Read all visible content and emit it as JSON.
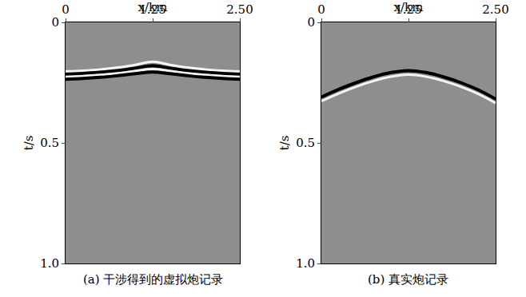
{
  "chart_data": [
    {
      "type": "line",
      "title": "(a) 干涉得到的虚拟炮记录",
      "x_label": "x/km",
      "y_label": "t/s",
      "xlim": [
        0,
        2.5
      ],
      "xticks": [
        0,
        1.25,
        {
          "value": 2.5,
          "label": "2.50"
        }
      ],
      "ylim": [
        1,
        0
      ],
      "yticks": [
        0,
        0.5,
        {
          "value": 1,
          "label": "1.0"
        }
      ],
      "x": [
        0,
        0.25,
        0.5,
        0.75,
        1.0,
        1.25,
        1.5,
        1.75,
        2.0,
        2.25,
        2.5
      ],
      "series": [
        {
          "color": "#f4f4f4",
          "values": [
            0.203,
            0.2,
            0.195,
            0.187,
            0.176,
            0.163,
            0.176,
            0.187,
            0.195,
            0.2,
            0.203
          ]
        },
        {
          "color": "#000000",
          "values": [
            0.215,
            0.212,
            0.207,
            0.2,
            0.19,
            0.18,
            0.19,
            0.2,
            0.207,
            0.212,
            0.215
          ]
        },
        {
          "color": "#f4f4f4",
          "values": [
            0.226,
            0.223,
            0.218,
            0.211,
            0.202,
            0.194,
            0.202,
            0.211,
            0.218,
            0.223,
            0.226
          ]
        },
        {
          "color": "#000000",
          "values": [
            0.236,
            0.233,
            0.228,
            0.221,
            0.213,
            0.206,
            0.213,
            0.221,
            0.228,
            0.233,
            0.236
          ]
        }
      ]
    },
    {
      "type": "line",
      "title": "(b) 真实炮记录",
      "x_label": "x/km",
      "y_label": "t/s",
      "xlim": [
        0,
        2.5
      ],
      "xticks": [
        0,
        1.25,
        {
          "value": 2.5,
          "label": "2.50"
        }
      ],
      "ylim": [
        1,
        0
      ],
      "yticks": [
        0,
        0.5,
        {
          "value": 1,
          "label": "1.0"
        }
      ],
      "x": [
        0,
        0.25,
        0.5,
        0.75,
        1.0,
        1.25,
        1.5,
        1.75,
        2.0,
        2.25,
        2.5
      ],
      "series": [
        {
          "color": "#000000",
          "values": [
            0.31,
            0.278,
            0.25,
            0.226,
            0.208,
            0.2,
            0.208,
            0.226,
            0.25,
            0.28,
            0.318
          ]
        },
        {
          "color": "#f4f4f4",
          "values": [
            0.327,
            0.295,
            0.267,
            0.243,
            0.225,
            0.217,
            0.225,
            0.243,
            0.267,
            0.297,
            0.335
          ]
        }
      ]
    }
  ]
}
